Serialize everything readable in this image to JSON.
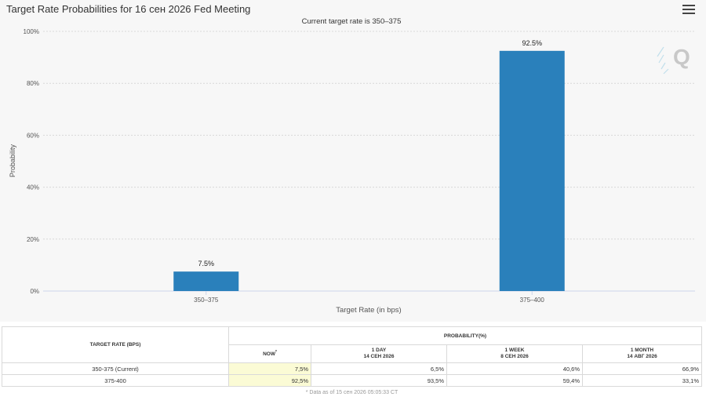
{
  "header": {
    "title": "Target Rate Probabilities for 16 сен 2026 Fed Meeting",
    "subtitle": "Current target rate is 350–375",
    "menu_icon": "hamburger-menu-icon"
  },
  "chart_data": {
    "type": "bar",
    "title": "Target Rate Probabilities for 16 сен 2026 Fed Meeting",
    "subtitle": "Current target rate is 350–375",
    "categories": [
      "350–375",
      "375–400"
    ],
    "values": [
      7.5,
      92.5
    ],
    "data_labels": [
      "7.5%",
      "92.5%"
    ],
    "xlabel": "Target Rate (in bps)",
    "ylabel": "Probability",
    "ylim": [
      0,
      100
    ],
    "yticks": [
      "0%",
      "20%",
      "40%",
      "60%",
      "80%",
      "100%"
    ],
    "ytick_values": [
      0,
      20,
      40,
      60,
      80,
      100
    ],
    "grid": true,
    "bar_color": "#2a80bb",
    "watermark": "Q"
  },
  "table": {
    "target_rate_header": "TARGET RATE (BPS)",
    "probability_header": "PROBABILITY(%)",
    "columns": [
      {
        "line1": "NOW",
        "line2": "",
        "sup": "*"
      },
      {
        "line1": "1 DAY",
        "line2": "14 СЕН 2026",
        "sup": ""
      },
      {
        "line1": "1 WEEK",
        "line2": "8 СЕН 2026",
        "sup": ""
      },
      {
        "line1": "1 MONTH",
        "line2": "14 АВГ 2026",
        "sup": ""
      }
    ],
    "rows": [
      {
        "rate": "350-375 (Current)",
        "values": [
          "7,5%",
          "6,5%",
          "40,6%",
          "66,9%"
        ]
      },
      {
        "rate": "375-400",
        "values": [
          "92,5%",
          "93,5%",
          "59,4%",
          "33,1%"
        ]
      }
    ],
    "footnote": "* Data as of 15 сен 2026 05:05:33 CT"
  }
}
